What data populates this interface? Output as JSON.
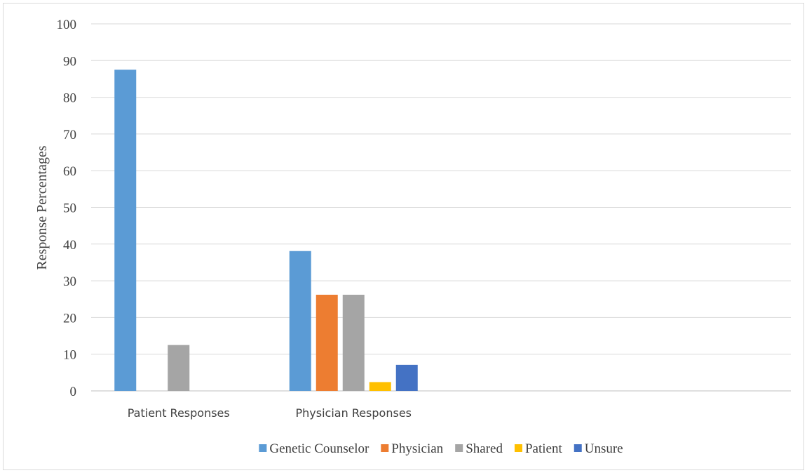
{
  "chart_data": {
    "type": "bar",
    "title": "",
    "xlabel": "",
    "ylabel": "Response Percentages",
    "ylim": [
      0,
      100
    ],
    "yticks": [
      0,
      10,
      20,
      30,
      40,
      50,
      60,
      70,
      80,
      90,
      100
    ],
    "categories": [
      "Patient Responses",
      "Physician Responses",
      "",
      ""
    ],
    "series": [
      {
        "name": "Genetic Counselor",
        "color": "#5b9bd5",
        "values": [
          87.5,
          38.1,
          null,
          null
        ]
      },
      {
        "name": "Physician",
        "color": "#ed7d31",
        "values": [
          0,
          26.2,
          null,
          null
        ]
      },
      {
        "name": "Shared",
        "color": "#a5a5a5",
        "values": [
          12.5,
          26.2,
          null,
          null
        ]
      },
      {
        "name": "Patient",
        "color": "#ffc000",
        "values": [
          0,
          2.4,
          null,
          null
        ]
      },
      {
        "name": "Unsure",
        "color": "#4472c4",
        "values": [
          0,
          7.1,
          null,
          null
        ]
      }
    ],
    "grid": true,
    "legend_position": "bottom"
  }
}
